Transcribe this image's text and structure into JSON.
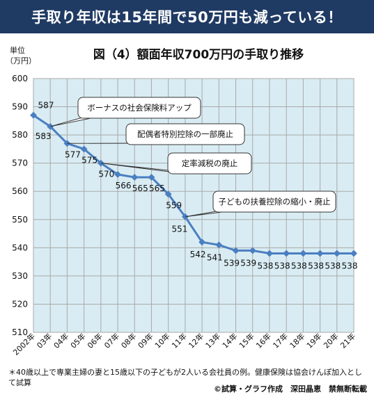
{
  "header": {
    "title": "手取り年収は15年間で50万円も減っている！"
  },
  "chart_data": {
    "type": "line",
    "title": "図（4）額面年収700万円の手取り推移",
    "ylabel_line1": "単位",
    "ylabel_line2": "（万円）",
    "ylim": [
      510,
      600
    ],
    "yticks": [
      510,
      520,
      530,
      540,
      550,
      560,
      570,
      580,
      590,
      600
    ],
    "categories": [
      "2002年",
      "03年",
      "04年",
      "05年",
      "06年",
      "07年",
      "08年",
      "09年",
      "10年",
      "11年",
      "12年",
      "13年",
      "14年",
      "15年",
      "16年",
      "17年",
      "18年",
      "19年",
      "20年",
      "21年"
    ],
    "values": [
      587,
      583,
      577,
      575,
      570,
      566,
      565,
      565,
      559,
      551,
      542,
      541,
      539,
      539,
      538,
      538,
      538,
      538,
      538,
      538
    ],
    "grid": true,
    "line_color": "#4a7fc1",
    "plot_bg": "#d9ecf3",
    "callouts": [
      {
        "text": "ボーナスの社会保険料アップ",
        "index": 1
      },
      {
        "text": "配偶者特別控除の一部廃止",
        "index": 2
      },
      {
        "text": "定率減税の廃止",
        "index": 4
      },
      {
        "text": "子どもの扶養控除の縮小・廃止",
        "index": 9
      }
    ]
  },
  "footnote": "＊40歳以上で専業主婦の妻と15歳以下の子どもが2人いる会社員の例。健康保険は協会けんぽ加入として試算",
  "credit": "©試算・グラフ作成　深田晶恵　禁無断転載"
}
